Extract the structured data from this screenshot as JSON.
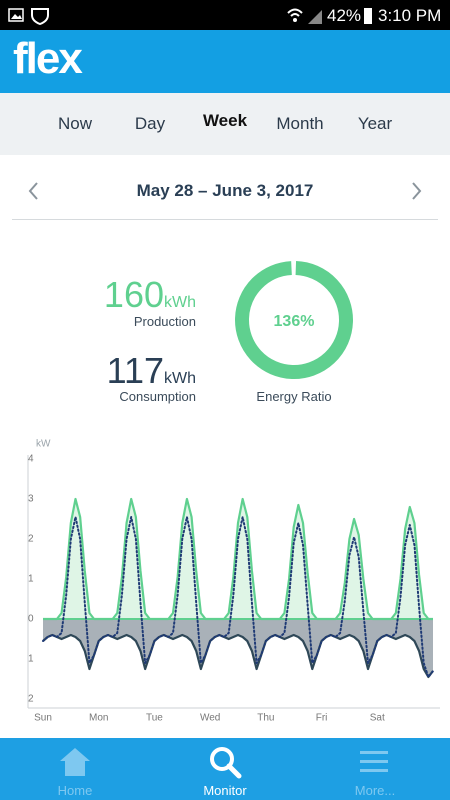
{
  "status_bar": {
    "battery": "42%",
    "time": "3:10 PM"
  },
  "header": {
    "logo": "flex"
  },
  "tabs": [
    "Now",
    "Day",
    "Week",
    "Month",
    "Year"
  ],
  "selected_tab": 2,
  "date_range": "May 28 – June 3, 2017",
  "summary": {
    "production": {
      "value": 160,
      "unit": "kWh",
      "label": "Production"
    },
    "consumption": {
      "value": 117,
      "unit": "kWh",
      "label": "Consumption"
    },
    "ratio": {
      "value": "136%",
      "label": "Energy Ratio"
    }
  },
  "chart_data": {
    "type": "area",
    "y_label": "kW",
    "xlim": [
      0,
      168
    ],
    "xticks": [
      {
        "value": 0,
        "label": "Sun"
      },
      {
        "value": 24,
        "label": "Mon"
      },
      {
        "value": 48,
        "label": "Tue"
      },
      {
        "value": 72,
        "label": "Wed"
      },
      {
        "value": 96,
        "label": "Thu"
      },
      {
        "value": 120,
        "label": "Fri"
      },
      {
        "value": 144,
        "label": "Sat"
      }
    ],
    "ylim": [
      -2,
      4
    ],
    "yticks": [
      {
        "value": -2,
        "label": "2"
      },
      {
        "value": -1,
        "label": "1"
      },
      0,
      1,
      2,
      3,
      4
    ],
    "x": [
      0,
      2,
      4,
      6,
      8,
      10,
      12,
      14,
      16,
      18,
      20,
      22,
      24,
      26,
      28,
      30,
      32,
      34,
      36,
      38,
      40,
      42,
      44,
      46,
      48,
      50,
      52,
      54,
      56,
      58,
      60,
      62,
      64,
      66,
      68,
      70,
      72,
      74,
      76,
      78,
      80,
      82,
      84,
      86,
      88,
      90,
      92,
      94,
      96,
      98,
      100,
      102,
      104,
      106,
      108,
      110,
      112,
      114,
      116,
      118,
      120,
      122,
      124,
      126,
      128,
      130,
      132,
      134,
      136,
      138,
      140,
      142,
      144,
      146,
      148,
      150,
      152,
      154,
      156,
      158,
      160,
      162,
      164,
      166,
      168
    ],
    "series": [
      {
        "color": "#5fd08f",
        "fill": "#dff5e6",
        "style": "solid",
        "values": [
          0,
          0,
          0,
          0,
          0.15,
          1.05,
          2.4,
          3,
          2.55,
          1.2,
          0.15,
          0,
          0,
          0,
          0,
          0,
          0.15,
          1.05,
          2.4,
          3,
          2.55,
          1.2,
          0.15,
          0,
          0,
          0,
          0,
          0,
          0.15,
          1.05,
          2.4,
          3,
          2.55,
          1.2,
          0.15,
          0,
          0,
          0,
          0,
          0,
          0.15,
          1.05,
          2.4,
          3,
          2.55,
          1.2,
          0.15,
          0,
          0,
          0,
          0,
          0,
          0.15,
          1,
          2.3,
          2.85,
          2.4,
          1.15,
          0.15,
          0,
          0,
          0,
          0,
          0,
          0.15,
          0.9,
          2,
          2.5,
          2.1,
          1,
          0.15,
          0,
          0,
          0,
          0,
          0,
          0.15,
          1,
          2.25,
          2.8,
          2.4,
          1.1,
          0.15,
          0,
          0
        ]
      },
      {
        "color": "#2f4858",
        "fill": "#a9b1b8",
        "style": "solid",
        "values": [
          -0.55,
          -0.45,
          -0.4,
          -0.45,
          -0.5,
          -0.45,
          -0.4,
          -0.45,
          -0.55,
          -0.8,
          -1.25,
          -0.9,
          -0.55,
          -0.45,
          -0.4,
          -0.45,
          -0.5,
          -0.45,
          -0.4,
          -0.45,
          -0.55,
          -0.8,
          -1.25,
          -0.9,
          -0.55,
          -0.45,
          -0.4,
          -0.45,
          -0.5,
          -0.45,
          -0.4,
          -0.45,
          -0.55,
          -0.8,
          -1.25,
          -0.9,
          -0.55,
          -0.45,
          -0.4,
          -0.45,
          -0.5,
          -0.45,
          -0.4,
          -0.45,
          -0.55,
          -0.8,
          -1.25,
          -0.9,
          -0.55,
          -0.45,
          -0.4,
          -0.45,
          -0.5,
          -0.45,
          -0.4,
          -0.45,
          -0.55,
          -0.8,
          -1.25,
          -0.9,
          -0.55,
          -0.45,
          -0.4,
          -0.45,
          -0.5,
          -0.45,
          -0.4,
          -0.45,
          -0.55,
          -0.8,
          -1.25,
          -0.9,
          -0.55,
          -0.45,
          -0.4,
          -0.45,
          -0.5,
          -0.45,
          -0.4,
          -0.45,
          -0.55,
          -0.8,
          -1.25,
          -1.45,
          -1.3
        ]
      },
      {
        "color": "#1f3a75",
        "style": "dotted",
        "values": [
          -0.55,
          -0.45,
          -0.4,
          -0.45,
          -0.35,
          0.6,
          2,
          2.55,
          2,
          0.4,
          -1.1,
          -0.9,
          -0.55,
          -0.45,
          -0.4,
          -0.45,
          -0.35,
          0.6,
          2,
          2.55,
          2,
          0.4,
          -1.1,
          -0.9,
          -0.55,
          -0.45,
          -0.4,
          -0.45,
          -0.35,
          0.6,
          2,
          2.55,
          2,
          0.4,
          -1.1,
          -0.9,
          -0.55,
          -0.45,
          -0.4,
          -0.45,
          -0.35,
          0.6,
          2,
          2.55,
          2,
          0.4,
          -1.1,
          -0.9,
          -0.55,
          -0.45,
          -0.4,
          -0.45,
          -0.35,
          0.55,
          1.9,
          2.4,
          1.85,
          0.35,
          -1.1,
          -0.9,
          -0.55,
          -0.45,
          -0.4,
          -0.45,
          -0.35,
          0.45,
          1.6,
          2.05,
          1.55,
          0.2,
          -1.1,
          -0.9,
          -0.55,
          -0.45,
          -0.4,
          -0.45,
          -0.35,
          0.55,
          1.85,
          2.35,
          1.85,
          0.3,
          -1.1,
          -1.45,
          -1.3
        ]
      }
    ],
    "zero_line_color": "#5fd08f"
  },
  "nav": [
    "Home",
    "Monitor",
    "More..."
  ],
  "selected_nav": 1
}
